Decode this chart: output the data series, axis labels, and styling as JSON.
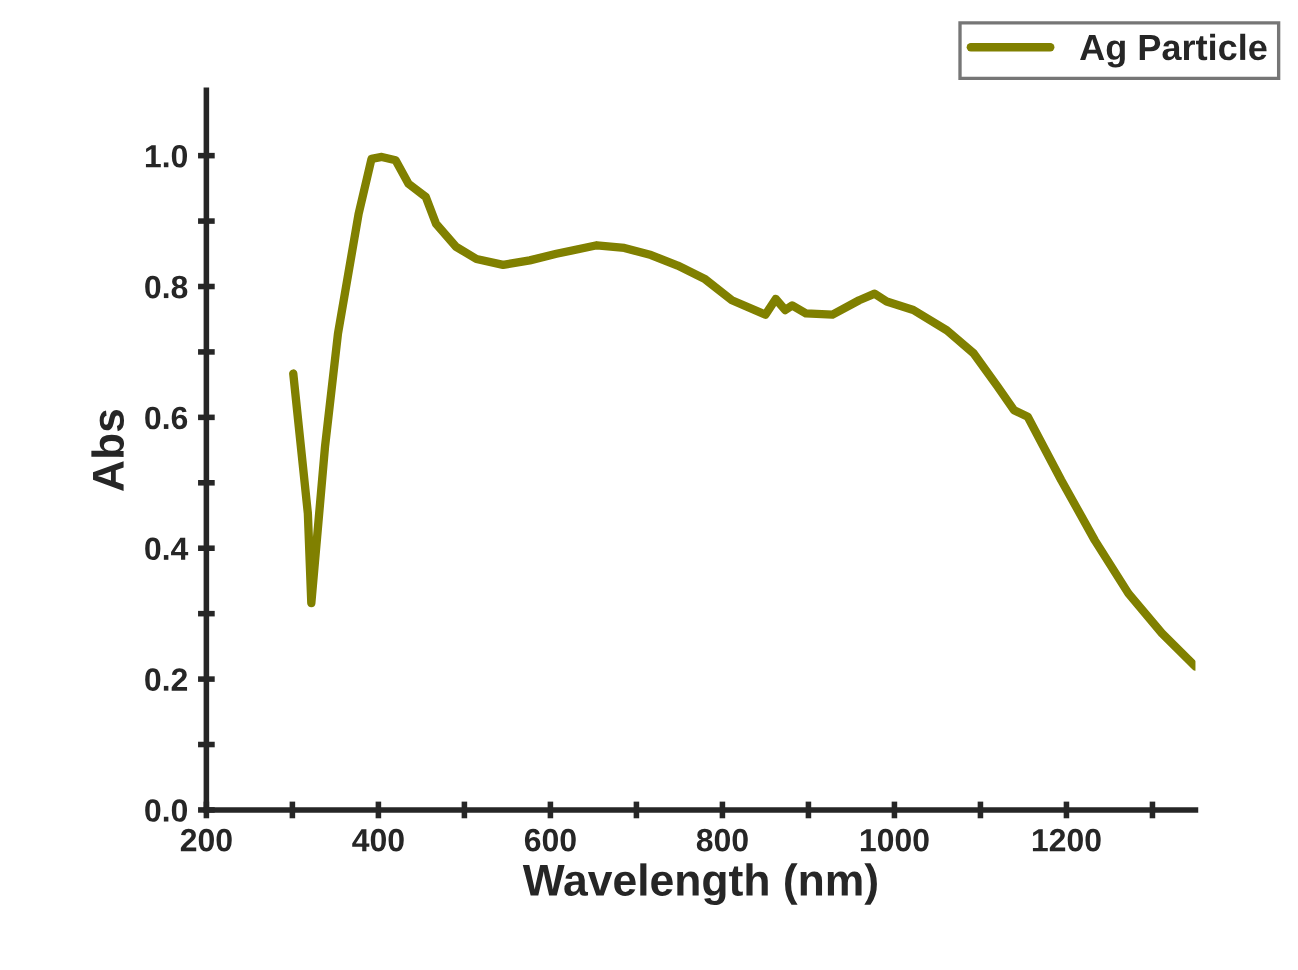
{
  "chart_data": {
    "type": "line",
    "xlabel": "Wavelength (nm)",
    "ylabel": "Abs",
    "series": [
      {
        "name": "Ag Particle",
        "color": "#808000",
        "x": [
          301,
          318,
          322,
          338,
          353,
          377,
          392,
          404,
          420,
          435,
          455,
          467,
          490,
          514,
          545,
          576,
          607,
          654,
          686,
          717,
          748,
          779,
          811,
          850,
          862,
          873,
          881,
          897,
          928,
          959,
          977,
          991,
          1022,
          1061,
          1092,
          1120,
          1139,
          1155,
          1194,
          1233,
          1272,
          1311,
          1350
        ],
        "values": [
          0.667,
          0.453,
          0.316,
          0.556,
          0.728,
          0.911,
          0.995,
          0.998,
          0.993,
          0.957,
          0.937,
          0.896,
          0.861,
          0.842,
          0.833,
          0.84,
          0.85,
          0.863,
          0.859,
          0.848,
          0.832,
          0.812,
          0.779,
          0.757,
          0.781,
          0.764,
          0.771,
          0.759,
          0.757,
          0.779,
          0.789,
          0.777,
          0.764,
          0.733,
          0.698,
          0.647,
          0.611,
          0.601,
          0.504,
          0.412,
          0.331,
          0.27,
          0.219
        ]
      }
    ],
    "xlim": [
      200,
      1350
    ],
    "ylim": [
      0,
      1.1
    ],
    "xticks": [
      200,
      {
        "value": 300,
        "label": null
      },
      400,
      {
        "value": 500,
        "label": null
      },
      600,
      {
        "value": 700,
        "label": null
      },
      800,
      {
        "value": 900,
        "label": null
      },
      1000,
      {
        "value": 1100,
        "label": null
      },
      1200,
      {
        "value": 1300,
        "label": null
      }
    ],
    "yticks": [
      {
        "value": 0,
        "label": "0.0"
      },
      {
        "value": 0.1,
        "label": null
      },
      0.2,
      {
        "value": 0.3,
        "label": null
      },
      0.4,
      {
        "value": 0.5,
        "label": null
      },
      0.6,
      {
        "value": 0.7,
        "label": null
      },
      0.8,
      {
        "value": 0.9,
        "label": null
      },
      {
        "value": 1.0,
        "label": "1.0"
      }
    ],
    "grid": false,
    "legend": "top right",
    "marker": "none",
    "line_style": "solid"
  }
}
